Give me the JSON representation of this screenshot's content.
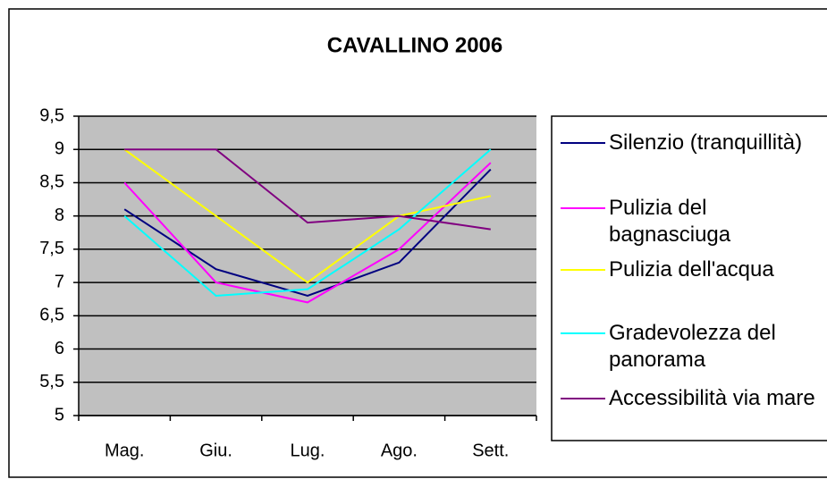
{
  "chart_data": {
    "type": "line",
    "title": "CAVALLINO 2006",
    "categories": [
      "Mag.",
      "Giu.",
      "Lug.",
      "Ago.",
      "Sett."
    ],
    "series": [
      {
        "name": "Silenzio (tranquillità)",
        "color": "#000080",
        "values": [
          8.1,
          7.2,
          6.8,
          7.3,
          8.7
        ]
      },
      {
        "name": "Pulizia del bagnasciuga",
        "color": "#FF00FF",
        "values": [
          8.5,
          7.0,
          6.7,
          7.5,
          8.8
        ]
      },
      {
        "name": "Pulizia dell'acqua",
        "color": "#FFFF00",
        "values": [
          9.0,
          8.0,
          7.0,
          8.0,
          8.3
        ]
      },
      {
        "name": "Gradevolezza del panorama",
        "color": "#00FFFF",
        "values": [
          8.0,
          6.8,
          6.9,
          7.8,
          9.0
        ]
      },
      {
        "name": "Accessibilità via mare",
        "color": "#800080",
        "values": [
          9.0,
          9.0,
          7.9,
          8.0,
          7.8
        ]
      }
    ],
    "ylim": [
      5,
      9.5
    ],
    "yticks": [
      5,
      {
        "value": 5.5,
        "label": "5,5"
      },
      6,
      {
        "value": 6.5,
        "label": "6,5"
      },
      7,
      {
        "value": 7.5,
        "label": "7,5"
      },
      8,
      {
        "value": 8.5,
        "label": "8,5"
      },
      9,
      {
        "value": 9.5,
        "label": "9,5"
      }
    ],
    "grid": true,
    "legend": "right"
  }
}
